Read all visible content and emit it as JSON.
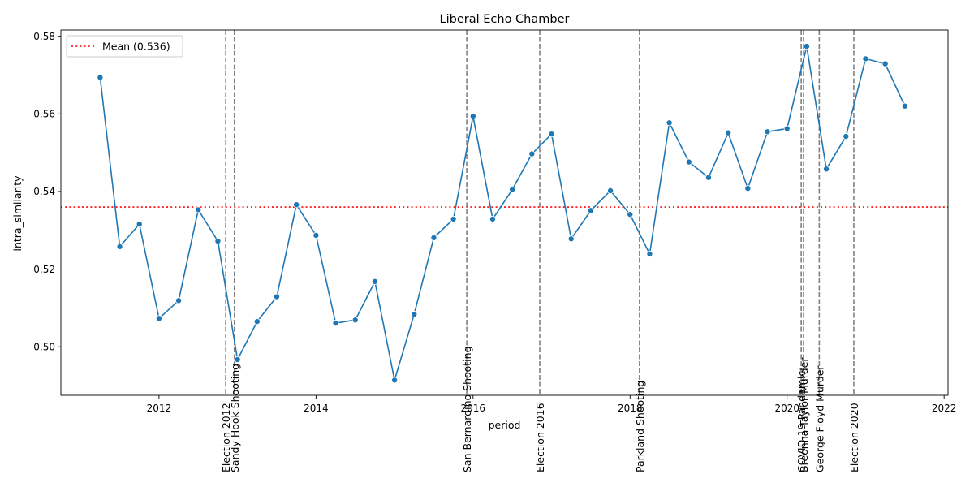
{
  "chart_data": {
    "type": "line",
    "title": "Liberal Echo Chamber",
    "xlabel": "period",
    "ylabel": "intra_similarity",
    "xlim": [
      2010.75,
      2022.05
    ],
    "ylim": [
      0.4875,
      0.5816
    ],
    "x_ticks": [
      2012,
      2014,
      2016,
      2018,
      2020,
      2022
    ],
    "x_tick_labels": [
      "2012",
      "2014",
      "2016",
      "2018",
      "2020",
      "2022"
    ],
    "y_ticks": [
      0.5,
      0.52,
      0.54,
      0.56,
      0.58
    ],
    "y_tick_labels": [
      "0.50",
      "0.52",
      "0.54",
      "0.56",
      "0.58"
    ],
    "grid": false,
    "series": [
      {
        "color": "#1f77b4",
        "marker": "circle",
        "x": [
          2011.25,
          2011.5,
          2011.75,
          2012.0,
          2012.25,
          2012.5,
          2012.75,
          2013.0,
          2013.25,
          2013.5,
          2013.75,
          2014.0,
          2014.25,
          2014.5,
          2014.75,
          2015.0,
          2015.25,
          2015.5,
          2015.75,
          2016.0,
          2016.25,
          2016.5,
          2016.75,
          2017.0,
          2017.25,
          2017.5,
          2017.75,
          2018.0,
          2018.25,
          2018.5,
          2018.75,
          2019.0,
          2019.25,
          2019.5,
          2019.75,
          2020.0,
          2020.25,
          2020.5,
          2020.75,
          2021.0,
          2021.25,
          2021.5
        ],
        "y": [
          0.5694,
          0.5258,
          0.5316,
          0.5073,
          0.5119,
          0.5353,
          0.5272,
          0.4967,
          0.5065,
          0.5129,
          0.5366,
          0.5287,
          0.5061,
          0.5069,
          0.5168,
          0.4914,
          0.5084,
          0.5281,
          0.5329,
          0.5594,
          0.5329,
          0.5405,
          0.5497,
          0.5548,
          0.5278,
          0.5351,
          0.5402,
          0.5341,
          0.5239,
          0.5577,
          0.5476,
          0.5436,
          0.5551,
          0.5408,
          0.5554,
          0.5562,
          0.5774,
          0.5458,
          0.5542,
          0.5742,
          0.5729,
          0.562
        ]
      }
    ],
    "mean_line": {
      "value": 0.536,
      "label": "Mean (0.536)",
      "color": "#ff0000",
      "style": "dotted"
    },
    "events": [
      {
        "x": 2012.85,
        "label": "Election 2012"
      },
      {
        "x": 2012.96,
        "label": "Sandy Hook Shooting"
      },
      {
        "x": 2015.92,
        "label": "San Bernardino Shooting"
      },
      {
        "x": 2016.85,
        "label": "Election 2016"
      },
      {
        "x": 2018.12,
        "label": "Parkland Shooting"
      },
      {
        "x": 2020.18,
        "label": "COVID-19 Pandemic"
      },
      {
        "x": 2020.21,
        "label": "Breonna Taylor Murder"
      },
      {
        "x": 2020.41,
        "label": "George Floyd Murder"
      },
      {
        "x": 2020.85,
        "label": "Election 2020"
      }
    ],
    "event_line_color": "#808080",
    "legend": {
      "placement": "top-left",
      "entries": [
        "Mean (0.536)"
      ]
    }
  }
}
